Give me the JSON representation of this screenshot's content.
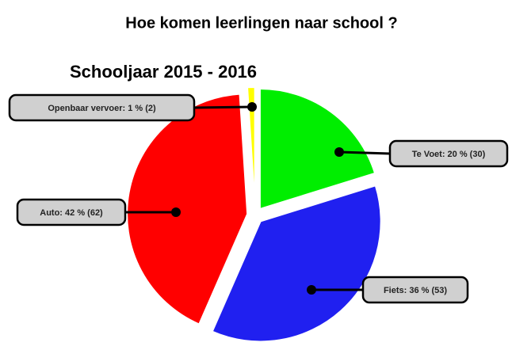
{
  "chart_data": {
    "type": "pie",
    "title": "Hoe komen leerlingen naar school ?",
    "subtitle": "Schooljaar 2015 - 2016",
    "values": [
      20,
      36,
      42,
      1
    ],
    "value_labels": [
      "Te Voet: 20 % (30)",
      "Fiets: 36 % (53)",
      "Auto: 42 % (62)",
      "Openbaar vervoer: 1 % (2)"
    ],
    "colors": [
      "#00ee00",
      "#2020f0",
      "#ff0000",
      "#ffff00"
    ]
  }
}
